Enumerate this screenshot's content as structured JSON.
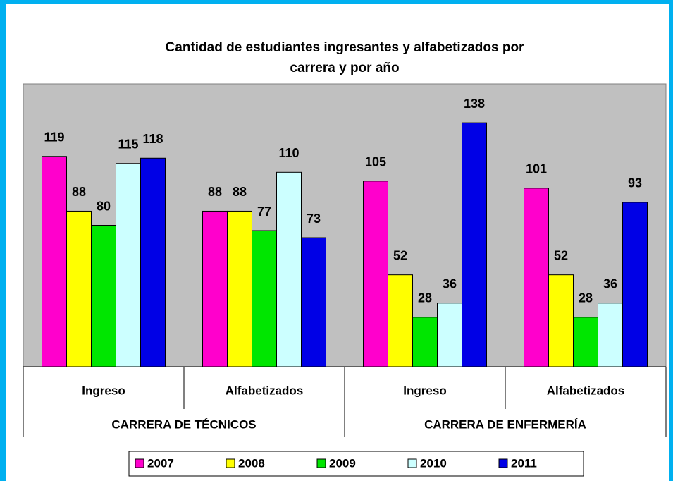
{
  "chart_data": {
    "type": "bar",
    "title": [
      "Cantidad de estudiantes ingresantes y alfabetizados por",
      "carrera y por año"
    ],
    "groups": [
      {
        "name": "CARRERA DE TÉCNICOS",
        "categories": [
          "Ingreso",
          "Alfabetizados"
        ]
      },
      {
        "name": "CARRERA DE ENFERMERÍA",
        "categories": [
          "Ingreso",
          "Alfabetizados"
        ]
      }
    ],
    "series": [
      {
        "name": "2007",
        "color": "#ff00cc",
        "values": [
          119,
          88,
          105,
          101
        ]
      },
      {
        "name": "2008",
        "color": "#ffff00",
        "values": [
          88,
          88,
          52,
          52
        ]
      },
      {
        "name": "2009",
        "color": "#00e600",
        "values": [
          80,
          77,
          28,
          28
        ]
      },
      {
        "name": "2010",
        "color": "#ccffff",
        "values": [
          115,
          110,
          36,
          36
        ]
      },
      {
        "name": "2011",
        "color": "#0000e6",
        "values": [
          118,
          73,
          138,
          93
        ]
      }
    ],
    "ylim": [
      0,
      160
    ],
    "plot_background": "#c0c0c0",
    "legend": "bottom"
  }
}
